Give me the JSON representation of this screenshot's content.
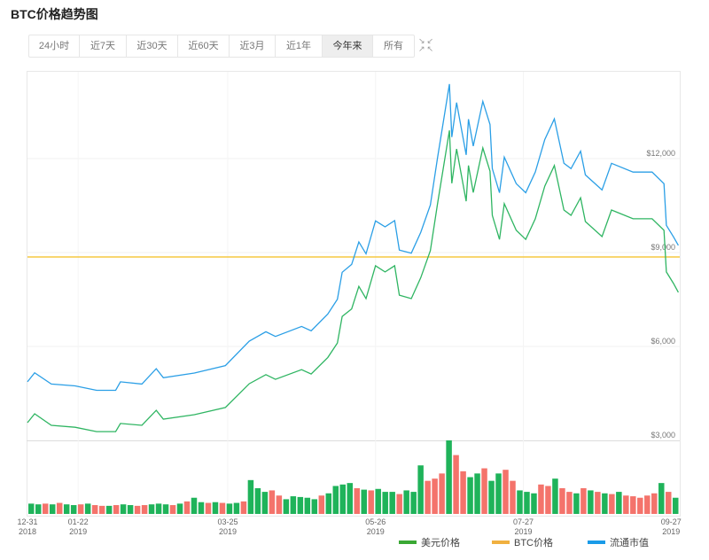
{
  "title": "BTC价格趋势图",
  "range_buttons": [
    "24小时",
    "近7天",
    "近30天",
    "近60天",
    "近3月",
    "近1年",
    "今年来",
    "所有"
  ],
  "active_range": "今年来",
  "expand_icon": "expand-arrows-icon",
  "chart_data": {
    "type": "line",
    "y_ticks": [
      "$3,000",
      "$6,000",
      "$9,000",
      "$12,000"
    ],
    "y_tick_values": [
      3000,
      6000,
      9000,
      12000
    ],
    "ylim": [
      3000,
      14900
    ],
    "x_ticks": [
      {
        "date": "12-31",
        "year": "2018",
        "day": 0
      },
      {
        "date": "01-22",
        "year": "2019",
        "day": 22
      },
      {
        "date": "03-25",
        "year": "2019",
        "day": 84
      },
      {
        "date": "05-26",
        "year": "2019",
        "day": 146
      },
      {
        "date": "07-27",
        "year": "2019",
        "day": 208
      },
      {
        "date": "09-27",
        "year": "2019",
        "day": 270
      }
    ],
    "grid": true,
    "legend_position": "bottom-right",
    "series": [
      {
        "name": "美元价格",
        "color": "#2fb562",
        "points": [
          [
            "12-31",
            3566
          ],
          [
            "01-03",
            3850
          ],
          [
            "01-10",
            3480
          ],
          [
            "01-20",
            3420
          ],
          [
            "01-29",
            3280
          ],
          [
            "02-06",
            3280
          ],
          [
            "02-08",
            3540
          ],
          [
            "02-17",
            3480
          ],
          [
            "02-23",
            3960
          ],
          [
            "02-26",
            3680
          ],
          [
            "03-11",
            3820
          ],
          [
            "03-24",
            4050
          ],
          [
            "04-03",
            4810
          ],
          [
            "04-10",
            5100
          ],
          [
            "04-14",
            4950
          ],
          [
            "04-25",
            5260
          ],
          [
            "04-29",
            5120
          ],
          [
            "05-06",
            5650
          ],
          [
            "05-10",
            6110
          ],
          [
            "05-12",
            6960
          ],
          [
            "05-16",
            7200
          ],
          [
            "05-19",
            7920
          ],
          [
            "05-22",
            7530
          ],
          [
            "05-26",
            8580
          ],
          [
            "05-30",
            8380
          ],
          [
            "06-03",
            8580
          ],
          [
            "06-05",
            7640
          ],
          [
            "06-10",
            7530
          ],
          [
            "06-14",
            8200
          ],
          [
            "06-18",
            9060
          ],
          [
            "06-21",
            10560
          ],
          [
            "06-26",
            12900
          ],
          [
            "06-27",
            11210
          ],
          [
            "06-29",
            12310
          ],
          [
            "07-03",
            10640
          ],
          [
            "07-04",
            11780
          ],
          [
            "07-06",
            10920
          ],
          [
            "07-10",
            12340
          ],
          [
            "07-13",
            11600
          ],
          [
            "07-14",
            10190
          ],
          [
            "07-17",
            9420
          ],
          [
            "07-19",
            10560
          ],
          [
            "07-24",
            9710
          ],
          [
            "07-28",
            9420
          ],
          [
            "08-01",
            10080
          ],
          [
            "08-05",
            11120
          ],
          [
            "08-09",
            11780
          ],
          [
            "08-13",
            10360
          ],
          [
            "08-16",
            10190
          ],
          [
            "08-20",
            10750
          ],
          [
            "08-22",
            9990
          ],
          [
            "08-29",
            9510
          ],
          [
            "09-02",
            10360
          ],
          [
            "09-11",
            10080
          ],
          [
            "09-19",
            10080
          ],
          [
            "09-24",
            9710
          ],
          [
            "09-25",
            8380
          ],
          [
            "09-28",
            8010
          ],
          [
            "09-30",
            7730
          ]
        ]
      },
      {
        "name": "BTC价格",
        "color": "#f5c842",
        "constant": 1
      },
      {
        "name": "流通市值",
        "color": "#2b9fe6",
        "points": [
          [
            "12-31",
            4870
          ],
          [
            "01-03",
            5160
          ],
          [
            "01-10",
            4800
          ],
          [
            "01-20",
            4740
          ],
          [
            "01-29",
            4600
          ],
          [
            "02-06",
            4600
          ],
          [
            "02-08",
            4870
          ],
          [
            "02-17",
            4800
          ],
          [
            "02-23",
            5290
          ],
          [
            "02-26",
            5000
          ],
          [
            "03-11",
            5150
          ],
          [
            "03-24",
            5390
          ],
          [
            "04-03",
            6170
          ],
          [
            "04-10",
            6470
          ],
          [
            "04-14",
            6320
          ],
          [
            "04-25",
            6640
          ],
          [
            "04-29",
            6500
          ],
          [
            "05-06",
            7040
          ],
          [
            "05-10",
            7510
          ],
          [
            "05-12",
            8370
          ],
          [
            "05-16",
            8620
          ],
          [
            "05-19",
            9340
          ],
          [
            "05-22",
            8960
          ],
          [
            "05-26",
            10010
          ],
          [
            "05-30",
            9820
          ],
          [
            "06-03",
            10020
          ],
          [
            "06-05",
            9080
          ],
          [
            "06-10",
            8980
          ],
          [
            "06-14",
            9650
          ],
          [
            "06-18",
            10520
          ],
          [
            "06-21",
            12030
          ],
          [
            "06-26",
            14380
          ],
          [
            "06-27",
            12690
          ],
          [
            "06-29",
            13790
          ],
          [
            "07-03",
            12120
          ],
          [
            "07-04",
            13260
          ],
          [
            "07-06",
            12400
          ],
          [
            "07-10",
            13830
          ],
          [
            "07-13",
            13090
          ],
          [
            "07-14",
            11680
          ],
          [
            "07-17",
            10910
          ],
          [
            "07-19",
            12050
          ],
          [
            "07-24",
            11200
          ],
          [
            "07-28",
            10910
          ],
          [
            "08-01",
            11570
          ],
          [
            "08-05",
            12610
          ],
          [
            "08-09",
            13270
          ],
          [
            "08-13",
            11850
          ],
          [
            "08-16",
            11680
          ],
          [
            "08-20",
            12240
          ],
          [
            "08-22",
            11480
          ],
          [
            "08-29",
            11000
          ],
          [
            "09-02",
            11850
          ],
          [
            "09-11",
            11570
          ],
          [
            "09-19",
            11570
          ],
          [
            "09-24",
            11200
          ],
          [
            "09-25",
            9870
          ],
          [
            "09-28",
            9500
          ],
          [
            "09-30",
            9230
          ]
        ]
      }
    ],
    "volume": {
      "up_color": "#1fb35a",
      "down_color": "#f4736b",
      "values": [
        14,
        13,
        14,
        13,
        15,
        13,
        12,
        13,
        14,
        12,
        11,
        11,
        12,
        13,
        12,
        11,
        12,
        13,
        14,
        13,
        12,
        14,
        17,
        22,
        16,
        15,
        16,
        15,
        14,
        15,
        17,
        46,
        35,
        30,
        32,
        25,
        20,
        24,
        23,
        22,
        20,
        25,
        28,
        38,
        40,
        42,
        35,
        33,
        32,
        34,
        30,
        30,
        27,
        32,
        30,
        66,
        45,
        48,
        55,
        100,
        80,
        58,
        50,
        55,
        62,
        45,
        55,
        60,
        45,
        32,
        30,
        28,
        40,
        38,
        48,
        35,
        30,
        28,
        35,
        32,
        30,
        28,
        27,
        30,
        25,
        24,
        22,
        25,
        28,
        42,
        30,
        22
      ],
      "direction": "ggrgrggrgrrgrggrrgggrgrggrgrggrgggrrgggggrggggrgrgggrgggrrrgrrggrggrrgggrrgrrgrgrgrgrrrrrgrg"
    }
  },
  "legend": [
    {
      "label": "美元价格",
      "color": "#3aa834"
    },
    {
      "label": "BTC价格",
      "color": "#f0b040"
    },
    {
      "label": "流通市值",
      "color": "#1a9be8"
    }
  ]
}
